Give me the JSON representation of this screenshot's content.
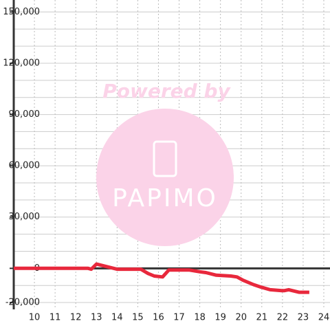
{
  "chart_data": {
    "type": "line",
    "x": [
      9,
      12.6,
      12.75,
      13,
      13.5,
      14,
      15.15,
      15.5,
      15.8,
      16.2,
      16.5,
      17.5,
      18,
      18.3,
      18.8,
      19.5,
      19.8,
      20.1,
      20.6,
      20.97,
      21.4,
      21.97,
      22.1,
      22.3,
      22.8,
      23.3
    ],
    "series": [
      {
        "color": "#e8283c",
        "values": [
          0,
          0,
          -500,
          2500,
          1000,
          -500,
          -500,
          -3000,
          -4500,
          -5000,
          -1000,
          -1000,
          -2000,
          -2500,
          -4000,
          -4500,
          -5000,
          -7000,
          -9500,
          -11000,
          -12500,
          -13000,
          -13000,
          -12500,
          -14000,
          -14000
        ]
      }
    ],
    "xlim": [
      9,
      24.3
    ],
    "xticks": [
      10,
      11,
      12,
      13,
      14,
      15,
      16,
      17,
      18,
      19,
      20,
      21,
      22,
      23,
      24
    ],
    "ylim": [
      -24000,
      157000
    ],
    "yticks": [
      {
        "value": -20000,
        "label": "-20,000"
      },
      0,
      {
        "value": 30000,
        "label": "30,000"
      },
      {
        "value": 60000,
        "label": "60,000"
      },
      {
        "value": 90000,
        "label": "90,000"
      },
      {
        "value": 120000,
        "label": "120,000"
      },
      {
        "value": 150000,
        "label": "150,000"
      }
    ],
    "minor_yticks": [
      -10000,
      10000,
      20000,
      40000,
      50000,
      70000,
      80000,
      100000,
      110000,
      130000,
      140000
    ],
    "grid": true,
    "watermark": {
      "text": "Powered by",
      "brand": "PAPIMO"
    }
  }
}
